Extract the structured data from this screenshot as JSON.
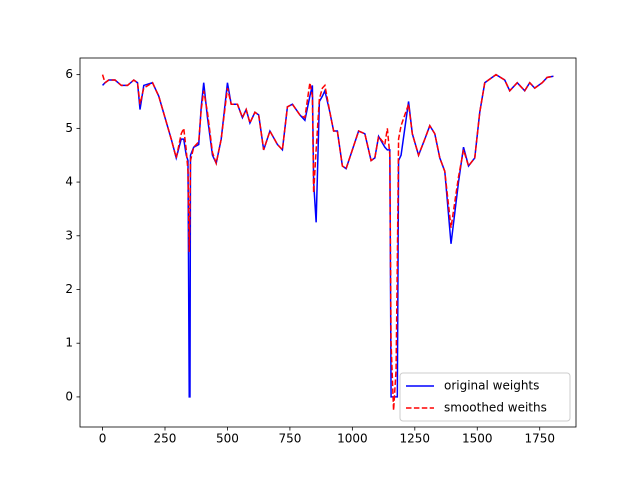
{
  "chart_data": {
    "type": "line",
    "x": [
      0,
      10,
      25,
      50,
      75,
      100,
      125,
      140,
      150,
      165,
      200,
      225,
      250,
      275,
      295,
      315,
      325,
      335,
      342,
      347,
      350,
      352,
      365,
      385,
      395,
      405,
      420,
      440,
      455,
      475,
      500,
      515,
      540,
      560,
      575,
      590,
      610,
      625,
      645,
      670,
      700,
      720,
      740,
      760,
      790,
      810,
      830,
      840,
      845,
      855,
      868,
      880,
      890,
      910,
      925,
      940,
      960,
      975,
      1000,
      1025,
      1050,
      1075,
      1090,
      1105,
      1130,
      1140,
      1150,
      1155,
      1165,
      1175,
      1180,
      1185,
      1195,
      1225,
      1240,
      1265,
      1290,
      1310,
      1330,
      1350,
      1370,
      1395,
      1425,
      1445,
      1465,
      1490,
      1510,
      1530,
      1575,
      1610,
      1630,
      1660,
      1690,
      1710,
      1730,
      1760,
      1780,
      1805
    ],
    "series": [
      {
        "name": "original weights",
        "color": "#0000ff",
        "linestyle": "solid",
        "values": [
          5.8,
          5.85,
          5.9,
          5.9,
          5.8,
          5.8,
          5.9,
          5.85,
          5.35,
          5.8,
          5.85,
          5.6,
          5.2,
          4.8,
          4.45,
          4.8,
          4.8,
          4.5,
          4.4,
          0,
          0,
          4.5,
          4.65,
          4.7,
          5.4,
          5.85,
          5.2,
          4.5,
          4.35,
          4.8,
          5.85,
          5.45,
          5.45,
          5.2,
          5.35,
          5.1,
          5.3,
          5.25,
          4.6,
          4.95,
          4.7,
          4.6,
          5.4,
          5.45,
          5.25,
          5.15,
          5.6,
          5.8,
          4.0,
          3.25,
          5.5,
          5.6,
          5.7,
          5.3,
          4.95,
          4.95,
          4.3,
          4.25,
          4.6,
          4.95,
          4.9,
          4.4,
          4.45,
          4.85,
          4.65,
          4.6,
          4.6,
          0,
          0,
          0,
          0,
          4.4,
          4.5,
          5.5,
          4.9,
          4.5,
          4.8,
          5.05,
          4.9,
          4.45,
          4.2,
          2.85,
          4.0,
          4.65,
          4.3,
          4.45,
          5.3,
          5.85,
          6.0,
          5.9,
          5.7,
          5.85,
          5.7,
          5.85,
          5.75,
          5.85,
          5.95,
          5.97
        ]
      },
      {
        "name": "smoothed weiths",
        "color": "#ff0000",
        "linestyle": "dashed",
        "values": [
          6.0,
          5.85,
          5.9,
          5.9,
          5.8,
          5.8,
          5.9,
          5.85,
          5.45,
          5.75,
          5.85,
          5.6,
          5.2,
          4.8,
          4.45,
          4.9,
          5.0,
          4.6,
          4.2,
          2.7,
          3.5,
          4.4,
          4.65,
          4.75,
          5.35,
          5.7,
          5.3,
          4.55,
          4.35,
          4.8,
          5.75,
          5.45,
          5.45,
          5.2,
          5.35,
          5.1,
          5.3,
          5.25,
          4.6,
          4.95,
          4.7,
          4.6,
          5.4,
          5.45,
          5.25,
          5.2,
          5.85,
          5.6,
          3.8,
          4.6,
          5.55,
          5.75,
          5.8,
          5.3,
          4.95,
          4.95,
          4.3,
          4.25,
          4.6,
          4.95,
          4.9,
          4.4,
          4.45,
          4.85,
          4.7,
          5.0,
          4.5,
          1.0,
          -0.25,
          0.5,
          2.5,
          4.8,
          5.05,
          5.45,
          4.9,
          4.5,
          4.8,
          5.05,
          4.9,
          4.45,
          4.2,
          3.15,
          4.1,
          4.6,
          4.3,
          4.45,
          5.3,
          5.85,
          6.0,
          5.9,
          5.7,
          5.85,
          5.7,
          5.85,
          5.75,
          5.85,
          5.95,
          5.97
        ]
      }
    ],
    "xlim": [
      -90.25,
      1895.25
    ],
    "ylim": [
      -0.56,
      6.31
    ],
    "xticks": [
      0,
      250,
      500,
      750,
      1000,
      1250,
      1500,
      1750
    ],
    "yticks": [
      0,
      1,
      2,
      3,
      4,
      5,
      6
    ],
    "legend": "lower right"
  }
}
